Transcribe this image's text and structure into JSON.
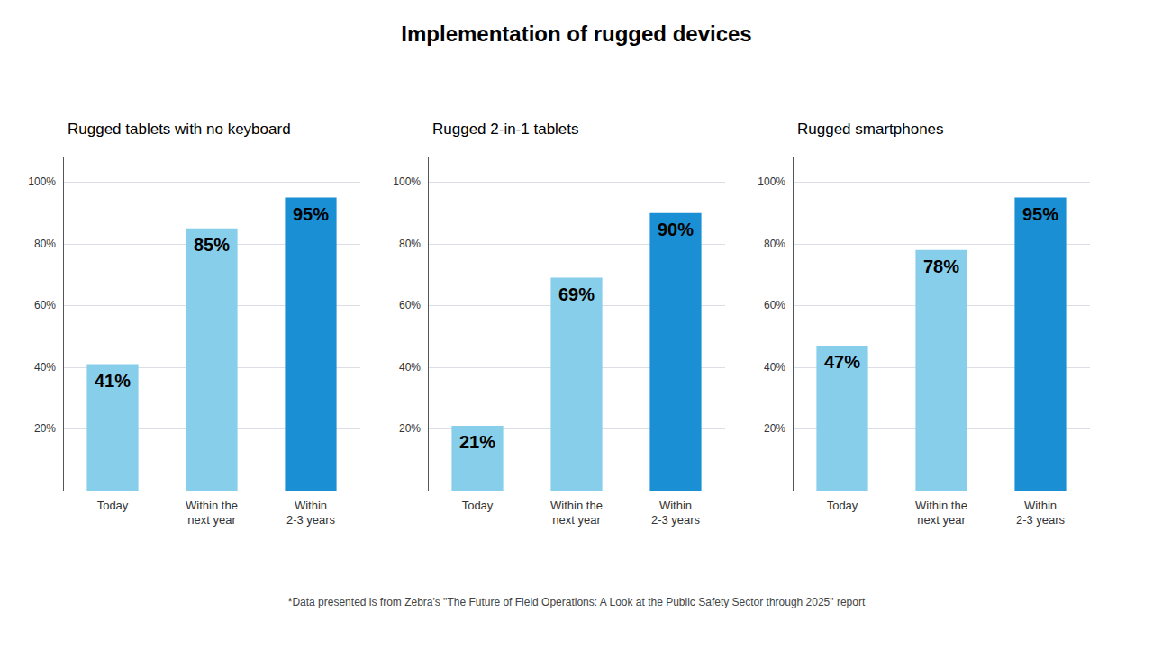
{
  "title": "Implementation of rugged devices",
  "footnote": "*Data presented is from Zebra's \"The Future of Field Operations: A Look at the Public Safety Sector through 2025\" report",
  "chart_data": [
    {
      "type": "bar",
      "subtitle": "Rugged tablets with no keyboard",
      "categories": [
        "Today",
        "Within the\nnext year",
        "Within\n2-3 years"
      ],
      "values": [
        41,
        85,
        95
      ],
      "value_labels": [
        "41%",
        "85%",
        "95%"
      ],
      "colors": [
        "#87CEEB",
        "#87CEEB",
        "#1B8FD4"
      ],
      "ylim": [
        0,
        108
      ],
      "yticks": [
        {
          "value": 20,
          "label": "20%"
        },
        {
          "value": 40,
          "label": "40%"
        },
        {
          "value": 60,
          "label": "60%"
        },
        {
          "value": 80,
          "label": "80%"
        },
        {
          "value": 100,
          "label": "100%"
        }
      ],
      "grid": true,
      "data_labels": true
    },
    {
      "type": "bar",
      "subtitle": "Rugged 2-in-1 tablets",
      "categories": [
        "Today",
        "Within the\nnext year",
        "Within\n2-3 years"
      ],
      "values": [
        21,
        69,
        90
      ],
      "value_labels": [
        "21%",
        "69%",
        "90%"
      ],
      "colors": [
        "#87CEEB",
        "#87CEEB",
        "#1B8FD4"
      ],
      "ylim": [
        0,
        108
      ],
      "yticks": [
        {
          "value": 20,
          "label": "20%"
        },
        {
          "value": 40,
          "label": "40%"
        },
        {
          "value": 60,
          "label": "60%"
        },
        {
          "value": 80,
          "label": "80%"
        },
        {
          "value": 100,
          "label": "100%"
        }
      ],
      "grid": true,
      "data_labels": true
    },
    {
      "type": "bar",
      "subtitle": "Rugged smartphones",
      "categories": [
        "Today",
        "Within the\nnext year",
        "Within\n2-3 years"
      ],
      "values": [
        47,
        78,
        95
      ],
      "value_labels": [
        "47%",
        "78%",
        "95%"
      ],
      "colors": [
        "#87CEEB",
        "#87CEEB",
        "#1B8FD4"
      ],
      "ylim": [
        0,
        108
      ],
      "yticks": [
        {
          "value": 20,
          "label": "20%"
        },
        {
          "value": 40,
          "label": "40%"
        },
        {
          "value": 60,
          "label": "60%"
        },
        {
          "value": 80,
          "label": "80%"
        },
        {
          "value": 100,
          "label": "100%"
        }
      ],
      "grid": true,
      "data_labels": true
    }
  ]
}
